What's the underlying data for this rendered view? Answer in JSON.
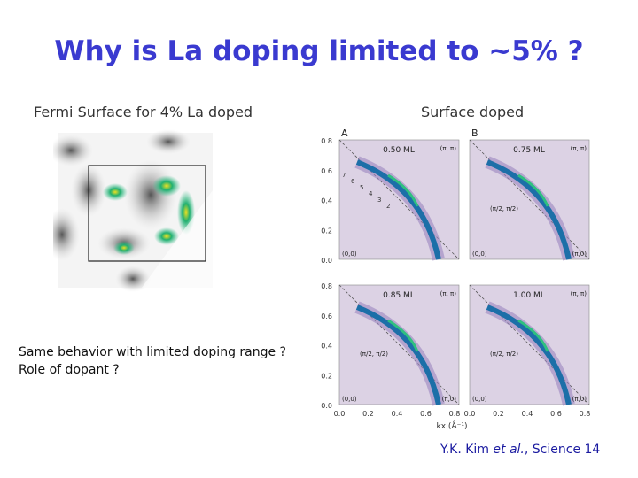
{
  "title": "Why is La doping limited to ~5% ?",
  "left": {
    "caption": "Fermi Surface for 4% La doped",
    "notes": [
      "Same behavior with limited doping range ?",
      "Role of dopant ?"
    ]
  },
  "right": {
    "caption": "Surface doped"
  },
  "figure": {
    "panels": [
      {
        "letter": "A",
        "coverage": "0.50 ML",
        "corner_pp": "(π, π)",
        "origin": "(0,0)",
        "markers": [
          "7",
          "6",
          "5",
          "4",
          "3",
          "2"
        ]
      },
      {
        "letter": "B",
        "coverage": "0.75 ML",
        "corner_pp": "(π, π)",
        "middle": "(π/2, π/2)",
        "origin": "(0,0)",
        "corner_p0": "(π,0)"
      },
      {
        "coverage": "0.85 ML",
        "corner_pp": "(π, π)",
        "middle": "(π/2, π/2)",
        "origin": "(0,0)",
        "corner_p0": "(π,0)"
      },
      {
        "coverage": "1.00 ML",
        "corner_pp": "(π, π)",
        "middle": "(π/2, π/2)",
        "origin": "(0,0)",
        "corner_p0": "(π,0)"
      }
    ],
    "y_ticks": [
      "0.8",
      "0.6",
      "0.4",
      "0.2",
      "0.0"
    ],
    "x_ticks": [
      "0.0",
      "0.2",
      "0.4",
      "0.6",
      "0.8"
    ],
    "x_label": "kx (Å⁻¹)"
  },
  "citation": {
    "authors": "Y.K. Kim ",
    "etal": "et al.",
    "journal": ", Science 14"
  }
}
